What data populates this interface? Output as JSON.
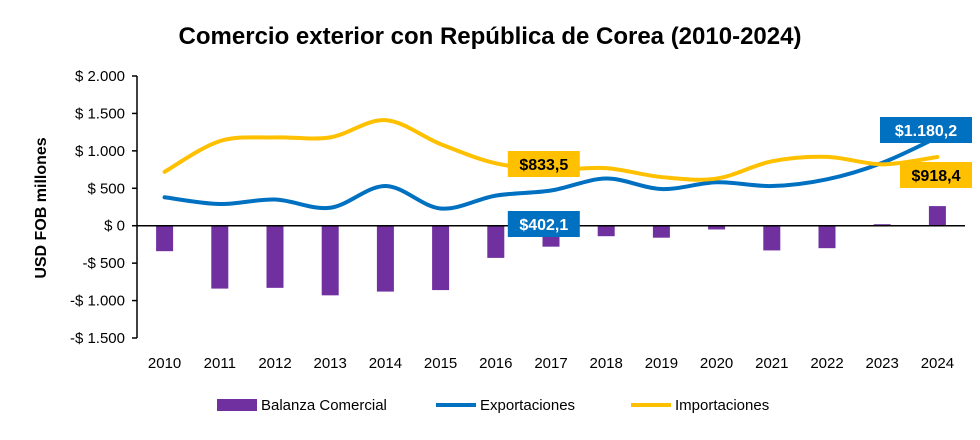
{
  "chart_data": {
    "type": "bar+line",
    "title": "Comercio exterior con República de Corea (2010-2024)",
    "ylabel": "USD FOB millones",
    "ylim": [
      -1500,
      2000
    ],
    "yticks": [
      {
        "value": 2000,
        "label": "$ 2.000"
      },
      {
        "value": 1500,
        "label": "$ 1.500"
      },
      {
        "value": 1000,
        "label": "$ 1.000"
      },
      {
        "value": 500,
        "label": "$ 500"
      },
      {
        "value": 0,
        "label": "$ 0"
      },
      {
        "value": -500,
        "label": "-$ 500"
      },
      {
        "value": -1000,
        "label": "-$ 1.000"
      },
      {
        "value": -1500,
        "label": "-$ 1.500"
      }
    ],
    "categories": [
      "2010",
      "2011",
      "2012",
      "2013",
      "2014",
      "2015",
      "2016",
      "2017",
      "2018",
      "2019",
      "2020",
      "2021",
      "2022",
      "2023",
      "2024"
    ],
    "grid": false,
    "legend_position": "bottom",
    "series": [
      {
        "name": "Balanza Comercial",
        "type": "bar",
        "color": "#7030A0",
        "values": [
          -340,
          -840,
          -830,
          -930,
          -880,
          -860,
          -430,
          -280,
          -140,
          -160,
          -50,
          -330,
          -300,
          20,
          262
        ]
      },
      {
        "name": "Exportaciones",
        "type": "line",
        "color": "#0070C0",
        "values": [
          380,
          290,
          350,
          240,
          530,
          230,
          402.1,
          470,
          630,
          490,
          580,
          530,
          620,
          840,
          1180.2
        ]
      },
      {
        "name": "Importaciones",
        "type": "line",
        "color": "#FFC000",
        "values": [
          720,
          1130,
          1180,
          1180,
          1410,
          1090,
          833.5,
          750,
          770,
          650,
          630,
          860,
          920,
          820,
          918.4
        ]
      }
    ],
    "annotations": [
      {
        "series": "Importaciones",
        "year": "2016",
        "label": "$833,5",
        "bg": "#FFC000",
        "color": "#000000"
      },
      {
        "series": "Exportaciones",
        "year": "2016",
        "label": "$402,1",
        "bg": "#0070C0",
        "color": "#FFFFFF"
      },
      {
        "series": "Exportaciones",
        "year": "2024",
        "label": "$1.180,2",
        "bg": "#0070C0",
        "color": "#FFFFFF"
      },
      {
        "series": "Importaciones",
        "year": "2024",
        "label": "$918,4",
        "bg": "#FFC000",
        "color": "#000000"
      }
    ]
  }
}
